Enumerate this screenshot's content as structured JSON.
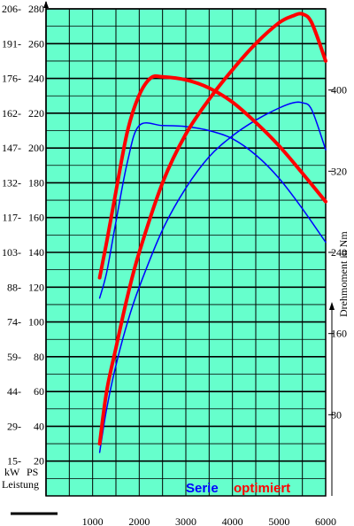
{
  "chart_data": {
    "type": "line",
    "xlim": [
      0,
      6000
    ],
    "x_ticks": [
      1000,
      2000,
      3000,
      4000,
      5000,
      6000
    ],
    "y_ps_lim": [
      0,
      280
    ],
    "y_ps_ticks": [
      "20",
      "40",
      "60",
      "80",
      "100",
      "120",
      "140",
      "160",
      "180",
      "200",
      "220",
      "240",
      "260",
      "280"
    ],
    "y_kw_ticks": [
      "15",
      "29",
      "44",
      "59",
      "74",
      "88",
      "103",
      "117",
      "132",
      "147",
      "162",
      "176",
      "191",
      "206"
    ],
    "y_nm_lim": [
      0,
      480
    ],
    "y_nm_ticks": [
      "80",
      "160",
      "240",
      "320",
      "400"
    ],
    "left_unit_kw": "kW",
    "left_unit_ps": "PS",
    "left_axis_label": "Leistung",
    "right_axis_label": "Drehmoment in Nm",
    "legend": {
      "serie": "Serie",
      "optimiert": "optimiert"
    },
    "grid": true,
    "colors": {
      "background": "#66ffcc",
      "serie": "#0000ff",
      "optimiert": "#ff0000"
    },
    "series": [
      {
        "name": "optimiert",
        "quantity": "power_ps",
        "x": [
          1150,
          1300,
          1500,
          1750,
          2000,
          2500,
          3000,
          3500,
          4000,
          4500,
          5000,
          5300,
          5500,
          5700,
          6000
        ],
        "values": [
          30,
          60,
          85,
          115,
          140,
          180,
          208,
          228,
          245,
          260,
          272,
          276,
          277,
          272,
          250
        ]
      },
      {
        "name": "Serie",
        "quantity": "power_ps",
        "x": [
          1150,
          1300,
          1500,
          1750,
          2000,
          2500,
          3000,
          3500,
          4000,
          4500,
          5000,
          5300,
          5500,
          5700,
          6000
        ],
        "values": [
          25,
          50,
          75,
          100,
          120,
          153,
          177,
          195,
          207,
          216,
          223,
          226,
          226,
          222,
          199
        ]
      },
      {
        "name": "optimiert",
        "quantity": "torque_nm",
        "x": [
          1150,
          1300,
          1500,
          1750,
          2000,
          2250,
          2500,
          3000,
          3500,
          4000,
          4500,
          5000,
          5500,
          6000
        ],
        "values": [
          215,
          250,
          300,
          360,
          395,
          412,
          413,
          410,
          402,
          388,
          368,
          345,
          318,
          290
        ]
      },
      {
        "name": "Serie",
        "quantity": "torque_nm",
        "x": [
          1150,
          1300,
          1500,
          1750,
          2000,
          2500,
          3000,
          3500,
          4000,
          4500,
          5000,
          5500,
          6000
        ],
        "values": [
          195,
          220,
          270,
          330,
          365,
          365,
          364,
          360,
          352,
          336,
          313,
          283,
          250
        ]
      }
    ]
  }
}
